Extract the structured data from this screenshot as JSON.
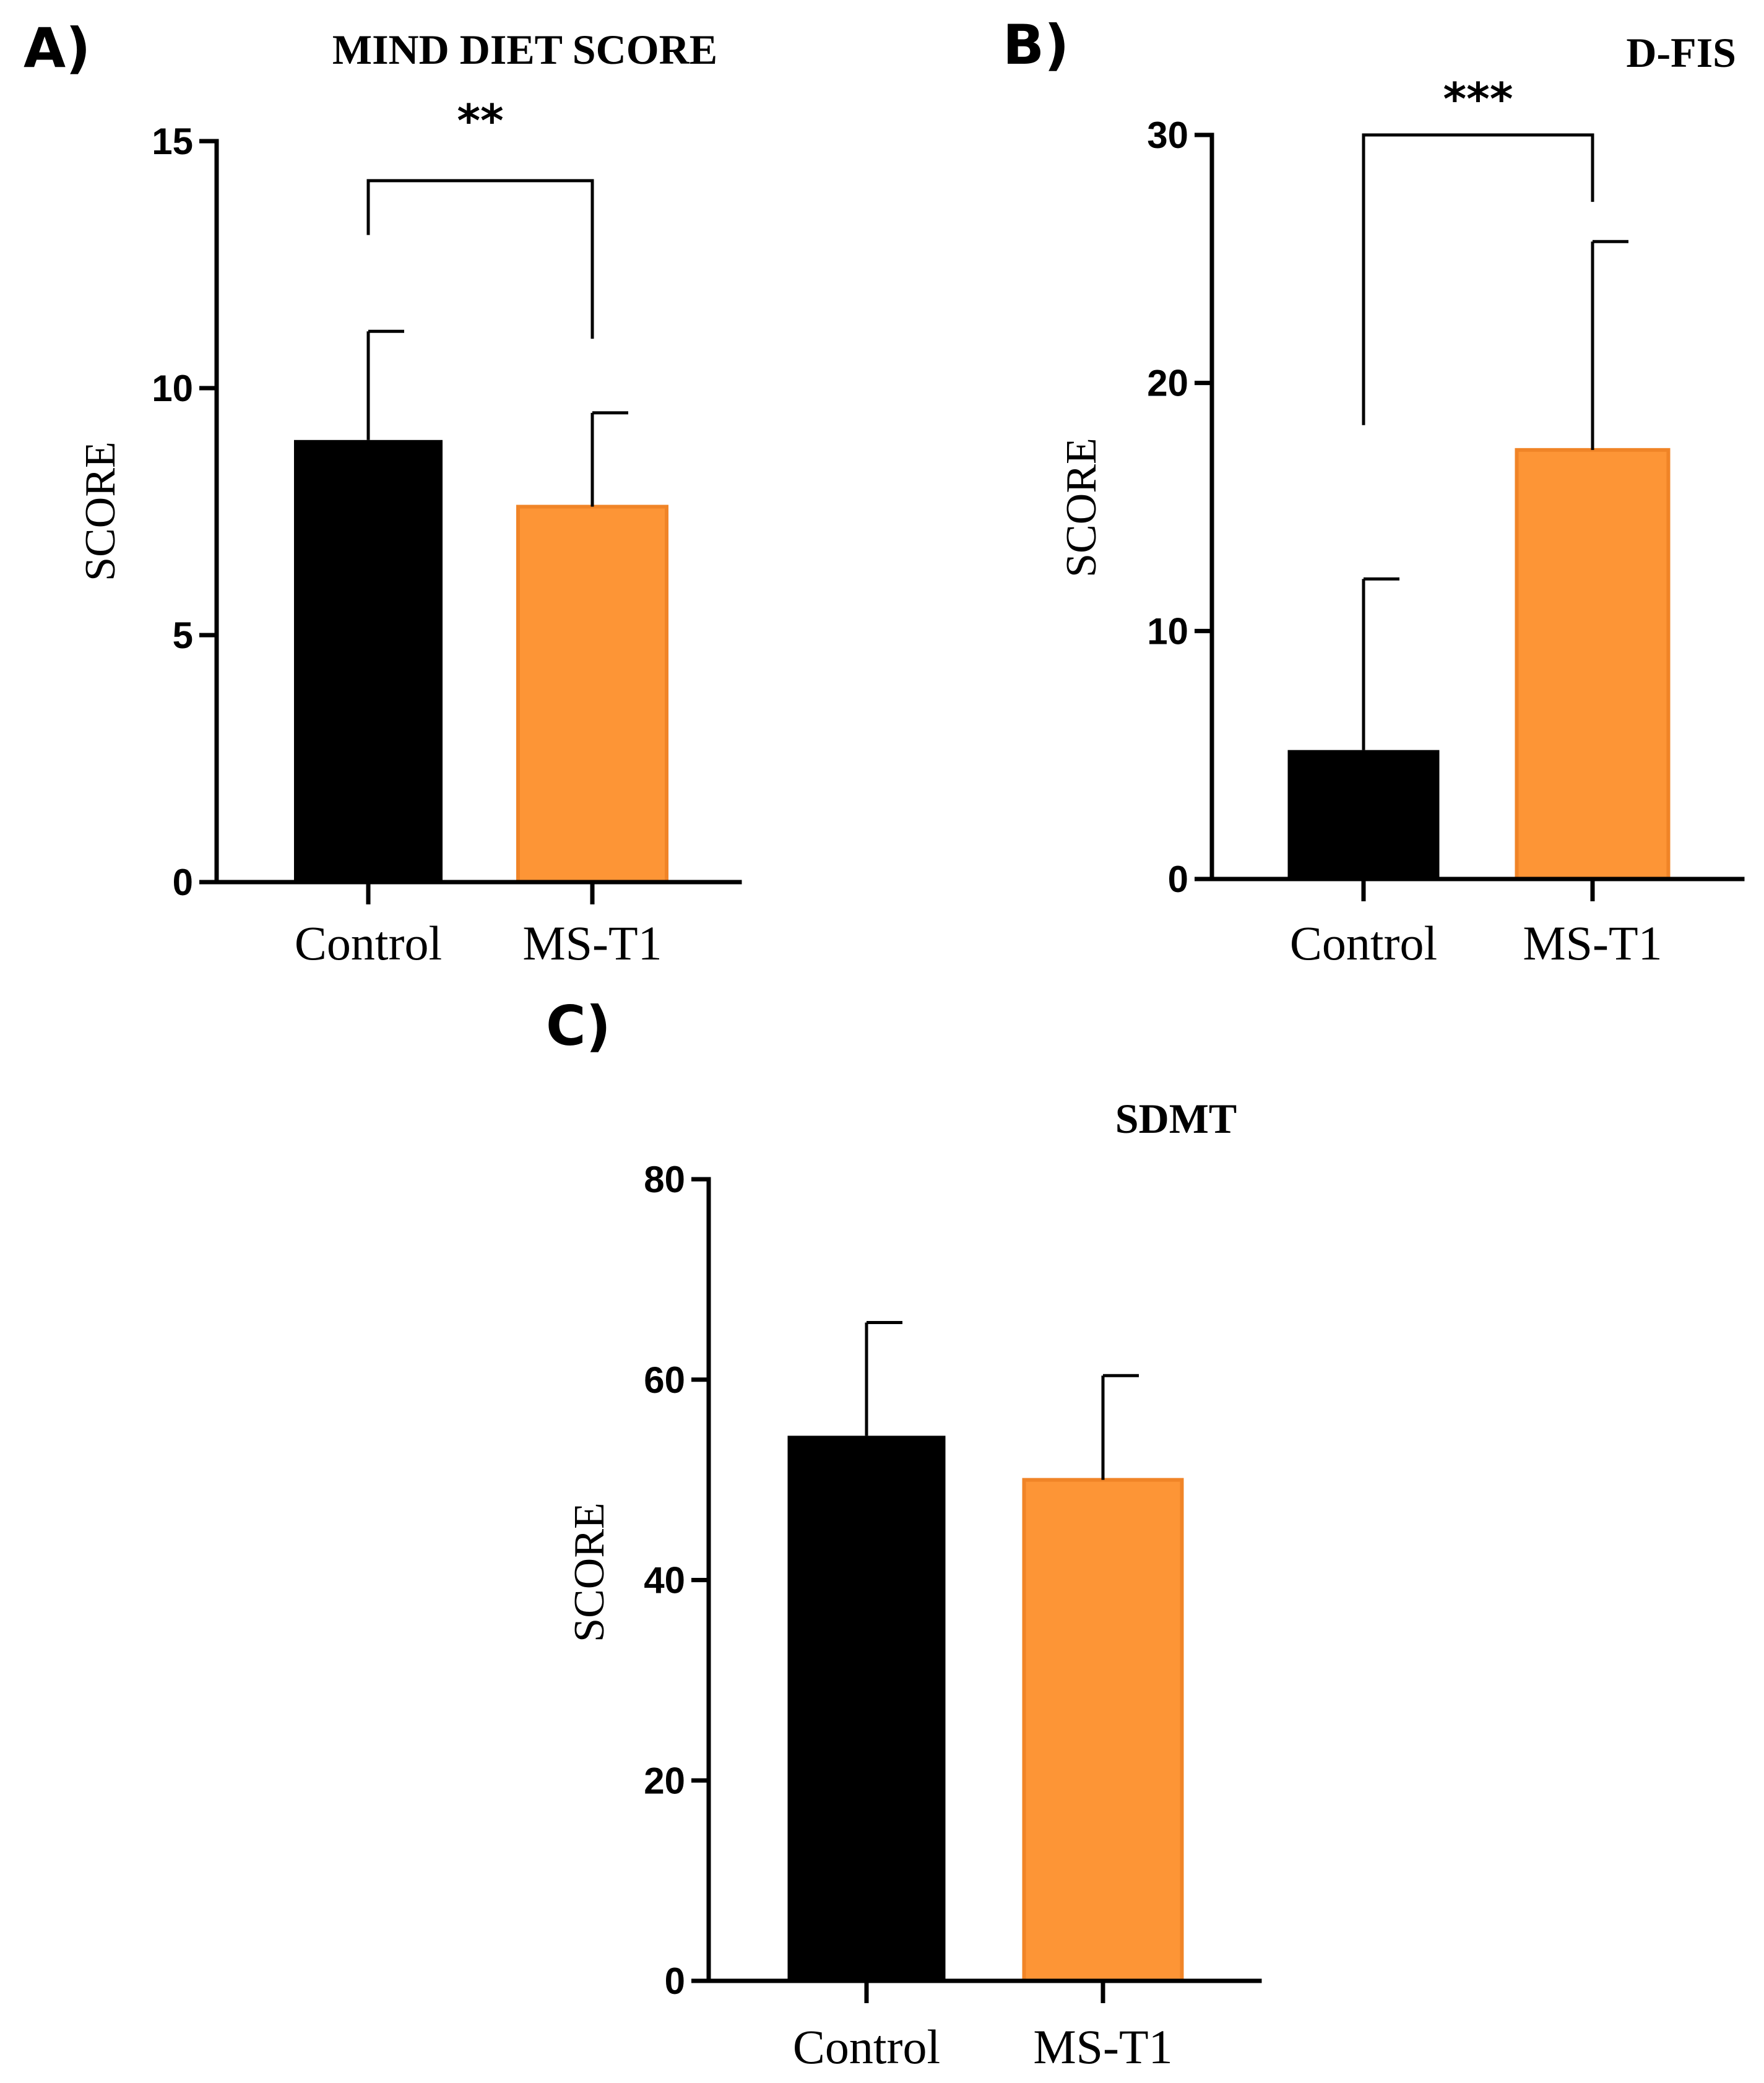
{
  "chart_data": [
    {
      "type": "bar",
      "panel": "A)",
      "title": "MIND DIET SCORE",
      "xlabel": "",
      "ylabel": "SCORE",
      "categories": [
        "Control",
        "MS-T1"
      ],
      "values": [
        8.95,
        7.6
      ],
      "errors": [
        2.2,
        1.9
      ],
      "colors": [
        "#000000",
        "#fd9536"
      ],
      "ylim": [
        0,
        15
      ],
      "yticks": [
        0,
        5,
        10,
        15
      ],
      "tick_labels": [
        "0",
        "5",
        "10",
        "15"
      ],
      "significance": {
        "label": "**",
        "from": 0,
        "to": 1,
        "y": 14.2,
        "left_end": 13.1,
        "right_end": 11.0
      }
    },
    {
      "type": "bar",
      "panel": "B)",
      "title": "D-FIS",
      "xlabel": "",
      "ylabel": "SCORE",
      "categories": [
        "Control",
        "MS-T1"
      ],
      "values": [
        5.2,
        17.3
      ],
      "errors": [
        6.9,
        8.4
      ],
      "colors": [
        "#000000",
        "#fd9536"
      ],
      "ylim": [
        0,
        30
      ],
      "yticks": [
        0,
        10,
        20,
        30
      ],
      "tick_labels": [
        "0",
        "10",
        "20",
        "30"
      ],
      "significance": {
        "label": "***",
        "from": 0,
        "to": 1,
        "y": 30.0,
        "left_end": 18.3,
        "right_end": 27.3
      }
    },
    {
      "type": "bar",
      "panel": "C)",
      "title": "SDMT",
      "xlabel": "",
      "ylabel": "SCORE",
      "categories": [
        "Control",
        "MS-T1"
      ],
      "values": [
        54.4,
        50.0
      ],
      "errors": [
        11.3,
        10.4
      ],
      "colors": [
        "#000000",
        "#fd9536"
      ],
      "ylim": [
        0,
        80
      ],
      "yticks": [
        0,
        20,
        40,
        60,
        80
      ],
      "tick_labels": [
        "0",
        "20",
        "40",
        "60",
        "80"
      ],
      "significance": null
    }
  ]
}
